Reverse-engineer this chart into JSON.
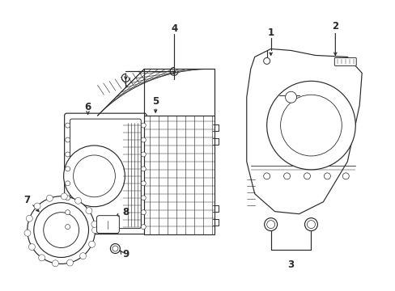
{
  "bg_color": "#ffffff",
  "line_color": "#2a2a2a",
  "lw": 0.85,
  "fig_w": 4.89,
  "fig_h": 3.6,
  "dpi": 100
}
